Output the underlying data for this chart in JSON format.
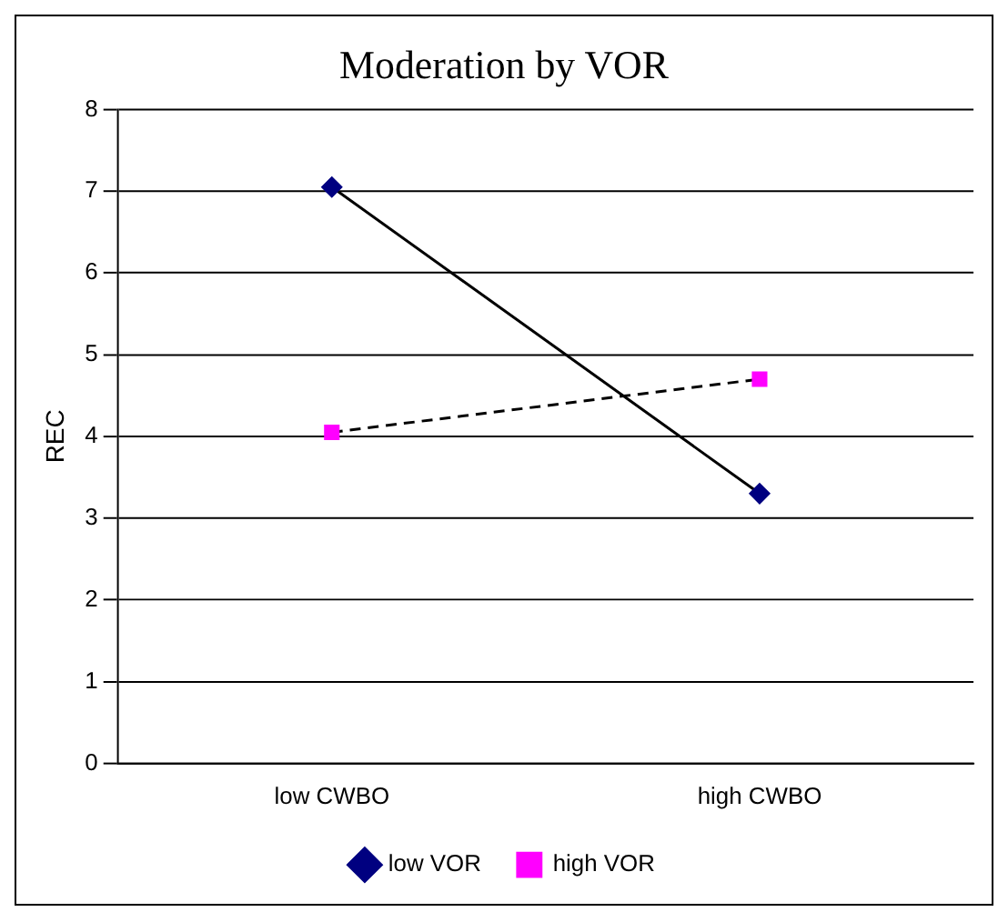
{
  "chart_data": {
    "type": "line",
    "title": "Moderation by VOR",
    "ylabel": "REC",
    "categories": [
      "low CWBO",
      "high CWBO"
    ],
    "series": [
      {
        "name": "low VOR",
        "color": "#000080",
        "values": [
          7.05,
          3.3
        ],
        "marker": "diamond",
        "line_style": "solid"
      },
      {
        "name": "high VOR",
        "color": "#ff00ff",
        "values": [
          4.05,
          4.7
        ],
        "marker": "square",
        "line_style": "dashed"
      }
    ],
    "ylim": [
      0,
      8
    ],
    "yticks": [
      0,
      1,
      2,
      3,
      4,
      5,
      6,
      7,
      8
    ],
    "grid": "y",
    "legend": "bottom"
  }
}
